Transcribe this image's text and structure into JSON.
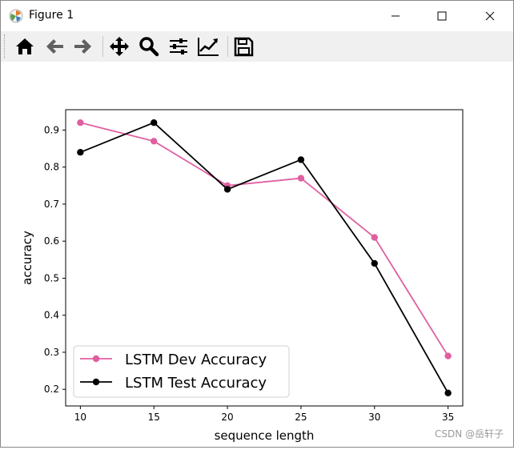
{
  "window": {
    "title": "Figure 1",
    "app_icon": "matplotlib-icon"
  },
  "controls": {
    "minimize": "minimize-icon",
    "maximize": "maximize-icon",
    "close": "close-icon"
  },
  "toolbar": {
    "tools": [
      {
        "name": "home",
        "icon": "home-icon"
      },
      {
        "name": "back",
        "icon": "arrow-left-icon"
      },
      {
        "name": "forward",
        "icon": "arrow-right-icon"
      },
      {
        "name": "pan",
        "icon": "move-icon"
      },
      {
        "name": "zoom",
        "icon": "magnifier-icon"
      },
      {
        "name": "configure-subplots",
        "icon": "sliders-icon"
      },
      {
        "name": "edit-axis",
        "icon": "line-chart-icon"
      },
      {
        "name": "save",
        "icon": "floppy-disk-icon"
      }
    ]
  },
  "watermark": "CSDN @岳轩子",
  "chart_data": {
    "type": "line",
    "x": [
      10,
      15,
      20,
      25,
      30,
      35
    ],
    "xticks": [
      "10",
      "15",
      "20",
      "25",
      "30",
      "35"
    ],
    "yticks": [
      "0.2",
      "0.3",
      "0.4",
      "0.5",
      "0.6",
      "0.7",
      "0.8",
      "0.9"
    ],
    "xlim": [
      9,
      36
    ],
    "ylim": [
      0.155,
      0.955
    ],
    "xlabel": "sequence length",
    "ylabel": "accuracy",
    "legend_position": "lower-left",
    "grid": false,
    "series": [
      {
        "name": "LSTM Dev Accuracy",
        "values": [
          0.92,
          0.87,
          0.75,
          0.77,
          0.61,
          0.29
        ],
        "color": "#e05fa0"
      },
      {
        "name": "LSTM Test Accuracy",
        "values": [
          0.84,
          0.92,
          0.74,
          0.82,
          0.54,
          0.19
        ],
        "color": "#000000"
      }
    ]
  }
}
